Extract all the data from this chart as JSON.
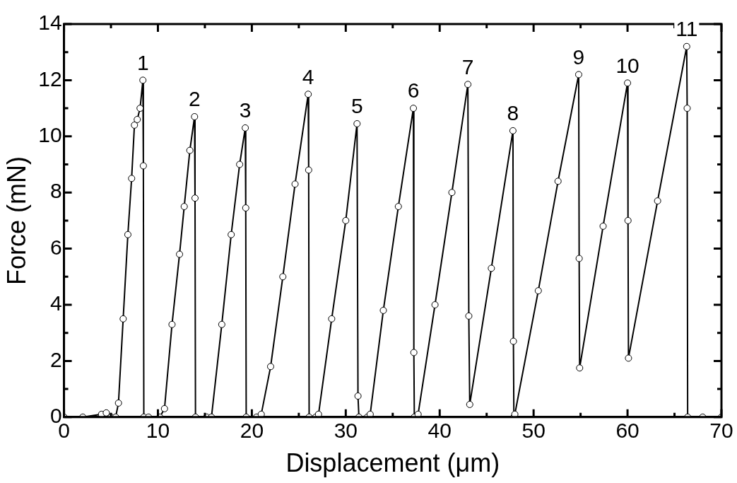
{
  "chart_data": {
    "type": "line",
    "xlabel": "Displacement (μm)",
    "ylabel": "Force (mN)",
    "xlim": [
      0,
      70
    ],
    "ylim": [
      0,
      14
    ],
    "xticks": [
      0,
      {
        "value": 5,
        "label": null
      },
      10,
      {
        "value": 15,
        "label": null
      },
      20,
      {
        "value": 25,
        "label": null
      },
      30,
      {
        "value": 35,
        "label": null
      },
      40,
      {
        "value": 45,
        "label": null
      },
      50,
      {
        "value": 55,
        "label": null
      },
      60,
      {
        "value": 65,
        "label": null
      },
      70
    ],
    "yticks": [
      0,
      {
        "value": 1,
        "label": null
      },
      2,
      {
        "value": 3,
        "label": null
      },
      4,
      {
        "value": 5,
        "label": null
      },
      6,
      {
        "value": 7,
        "label": null
      },
      8,
      {
        "value": 9,
        "label": null
      },
      10,
      {
        "value": 11,
        "label": null
      },
      12,
      {
        "value": 13,
        "label": null
      },
      14
    ],
    "grid": false,
    "legend": false,
    "marker": "circle",
    "line_style": "solid",
    "series": [
      {
        "color": "#000000",
        "x": [
          0,
          2,
          4,
          4.5,
          5,
          5.5,
          5.8,
          6.3,
          6.8,
          7.2,
          7.5,
          7.8,
          8.1,
          8.4,
          8.45,
          8.5,
          9,
          10.2,
          10.7,
          11.5,
          12.3,
          12.8,
          13.4,
          13.9,
          13.95,
          14,
          15.2,
          15.7,
          16.8,
          17.8,
          18.7,
          19.3,
          19.35,
          19.4,
          20.5,
          21.0,
          22.0,
          23.3,
          24.6,
          26.0,
          26.05,
          26.1,
          26.8,
          27.1,
          28.5,
          30.0,
          31.2,
          31.3,
          31.4,
          32.3,
          32.6,
          34.0,
          35.6,
          37.2,
          37.25,
          37.3,
          37.7,
          39.5,
          41.3,
          43.0,
          43.1,
          43.2,
          45.5,
          47.8,
          47.85,
          47.9,
          48.0,
          50.5,
          52.6,
          54.8,
          54.85,
          54.9,
          57.4,
          60.0,
          60.05,
          60.1,
          63.2,
          66.3,
          66.35,
          66.4,
          68,
          70
        ],
        "values": [
          0,
          0,
          0.1,
          0.15,
          0,
          0,
          0.5,
          3.5,
          6.5,
          8.5,
          10.4,
          10.6,
          11.0,
          12.0,
          8.95,
          0,
          0,
          0,
          0.3,
          3.3,
          5.8,
          7.5,
          9.5,
          10.7,
          7.8,
          0,
          0,
          0,
          3.3,
          6.5,
          9.0,
          10.3,
          7.45,
          0,
          0,
          0.1,
          1.8,
          5.0,
          8.3,
          11.5,
          8.8,
          0,
          0,
          0.1,
          3.5,
          7.0,
          10.45,
          0.75,
          0,
          0,
          0.1,
          3.8,
          7.5,
          11.0,
          2.3,
          0,
          0.1,
          4.0,
          8.0,
          11.85,
          3.6,
          0.45,
          5.3,
          10.2,
          2.7,
          0,
          0.1,
          4.5,
          8.4,
          12.2,
          5.65,
          1.75,
          6.8,
          11.9,
          7.0,
          2.1,
          7.7,
          13.2,
          11.0,
          0,
          0,
          0
        ]
      }
    ],
    "annotations": [
      {
        "text": "1",
        "x": 8.4,
        "y": 12.0
      },
      {
        "text": "2",
        "x": 13.9,
        "y": 10.7
      },
      {
        "text": "3",
        "x": 19.3,
        "y": 10.3
      },
      {
        "text": "4",
        "x": 26.0,
        "y": 11.5
      },
      {
        "text": "5",
        "x": 31.2,
        "y": 10.45
      },
      {
        "text": "6",
        "x": 37.2,
        "y": 11.0
      },
      {
        "text": "7",
        "x": 43.0,
        "y": 11.85
      },
      {
        "text": "8",
        "x": 47.8,
        "y": 10.2
      },
      {
        "text": "9",
        "x": 54.8,
        "y": 12.2
      },
      {
        "text": "10",
        "x": 60.0,
        "y": 11.9
      },
      {
        "text": "11",
        "x": 66.3,
        "y": 13.2
      }
    ]
  }
}
